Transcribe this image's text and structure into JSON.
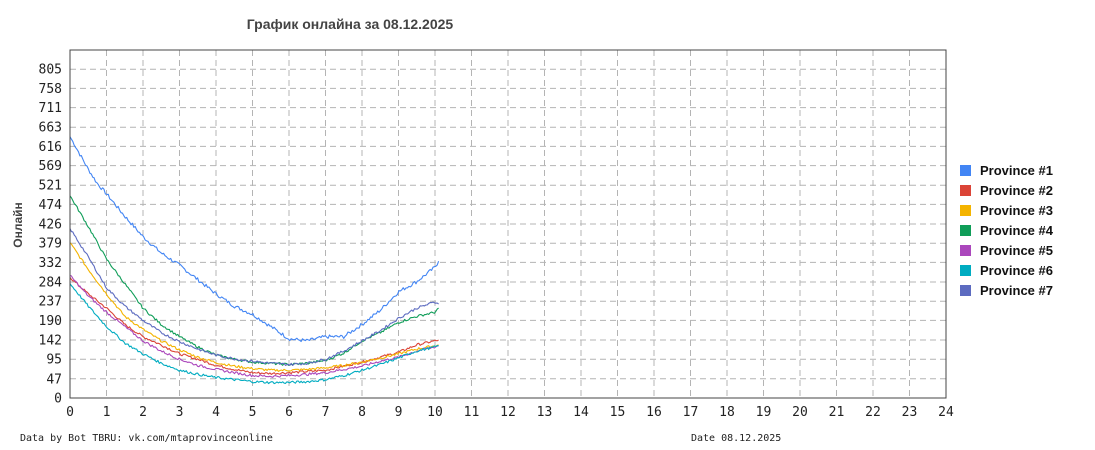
{
  "chart_data": {
    "type": "line",
    "title": "График онлайна за 08.12.2025",
    "xlabel": "",
    "ylabel": "Онлайн",
    "xlim": [
      0,
      24
    ],
    "ylim": [
      0,
      852
    ],
    "x_ticks": [
      0,
      1,
      2,
      3,
      4,
      5,
      6,
      7,
      8,
      9,
      10,
      11,
      12,
      13,
      14,
      15,
      16,
      17,
      18,
      19,
      20,
      21,
      22,
      23,
      24
    ],
    "y_ticks": [
      0,
      47,
      95,
      142,
      190,
      237,
      284,
      332,
      379,
      426,
      474,
      521,
      569,
      616,
      663,
      711,
      758,
      805
    ],
    "grid": true,
    "legend_position": "right",
    "series": [
      {
        "name": "Province #1",
        "color": "#4285f4",
        "x": [
          0,
          0.25,
          0.5,
          0.75,
          1,
          1.5,
          2,
          2.5,
          3,
          3.5,
          4,
          4.5,
          5,
          5.5,
          6,
          6.5,
          7,
          7.5,
          8,
          8.5,
          9,
          9.5,
          10,
          10.1
        ],
        "y": [
          640,
          600,
          560,
          525,
          500,
          445,
          395,
          355,
          325,
          290,
          255,
          225,
          205,
          175,
          145,
          140,
          150,
          150,
          180,
          215,
          260,
          285,
          320,
          335
        ]
      },
      {
        "name": "Province #2",
        "color": "#db4437",
        "x": [
          0,
          0.5,
          1,
          1.5,
          2,
          2.5,
          3,
          3.5,
          4,
          4.5,
          5,
          5.5,
          6,
          6.5,
          7,
          7.5,
          8,
          8.5,
          9,
          9.5,
          10,
          10.1
        ],
        "y": [
          295,
          255,
          220,
          180,
          150,
          130,
          108,
          95,
          80,
          70,
          62,
          60,
          62,
          65,
          68,
          78,
          88,
          100,
          112,
          130,
          140,
          142
        ]
      },
      {
        "name": "Province #3",
        "color": "#f4b400",
        "x": [
          0,
          0.5,
          1,
          1.5,
          2,
          2.5,
          3,
          3.5,
          4,
          4.5,
          5,
          5.5,
          6,
          6.5,
          7,
          7.5,
          8,
          8.5,
          9,
          9.5,
          10,
          10.1
        ],
        "y": [
          380,
          315,
          255,
          200,
          168,
          140,
          118,
          100,
          87,
          78,
          72,
          68,
          68,
          70,
          74,
          80,
          88,
          98,
          108,
          120,
          128,
          130
        ]
      },
      {
        "name": "Province #4",
        "color": "#0f9d58",
        "x": [
          0,
          0.5,
          1,
          1.5,
          2,
          2.5,
          3,
          3.5,
          4,
          4.5,
          5,
          5.5,
          6,
          6.5,
          7,
          7.5,
          8,
          8.5,
          9,
          9.5,
          10,
          10.1
        ],
        "y": [
          495,
          420,
          340,
          280,
          220,
          180,
          150,
          125,
          105,
          95,
          88,
          85,
          82,
          85,
          92,
          110,
          140,
          160,
          185,
          200,
          210,
          220
        ]
      },
      {
        "name": "Province #5",
        "color": "#ab47bc",
        "x": [
          0,
          0.5,
          1,
          1.5,
          2,
          2.5,
          3,
          3.5,
          4,
          4.5,
          5,
          5.5,
          6,
          6.5,
          7,
          7.5,
          8,
          8.5,
          9,
          9.5,
          10,
          10.1
        ],
        "y": [
          300,
          250,
          210,
          175,
          140,
          115,
          95,
          80,
          70,
          62,
          55,
          53,
          55,
          58,
          62,
          70,
          78,
          90,
          100,
          115,
          125,
          128
        ]
      },
      {
        "name": "Province #6",
        "color": "#00acc1",
        "x": [
          0,
          0.5,
          1,
          1.5,
          2,
          2.5,
          3,
          3.5,
          4,
          4.5,
          5,
          5.5,
          6,
          6.5,
          7,
          7.5,
          8,
          8.5,
          9,
          9.5,
          10,
          10.1
        ],
        "y": [
          280,
          225,
          175,
          135,
          108,
          85,
          68,
          58,
          50,
          45,
          40,
          38,
          38,
          40,
          45,
          55,
          68,
          82,
          98,
          115,
          125,
          128
        ]
      },
      {
        "name": "Province #7",
        "color": "#5c6bc0",
        "x": [
          0,
          0.5,
          1,
          1.5,
          2,
          2.5,
          3,
          3.5,
          4,
          4.5,
          5,
          5.5,
          6,
          6.5,
          7,
          7.5,
          8,
          8.5,
          9,
          9.5,
          10,
          10.1
        ],
        "y": [
          415,
          345,
          270,
          225,
          190,
          160,
          138,
          120,
          105,
          96,
          90,
          85,
          82,
          85,
          95,
          115,
          140,
          165,
          195,
          220,
          235,
          230
        ]
      }
    ]
  },
  "footer": {
    "left": "Data by Bot TBRU: vk.com/mtaprovinceonline",
    "right": "Date 08.12.2025"
  }
}
